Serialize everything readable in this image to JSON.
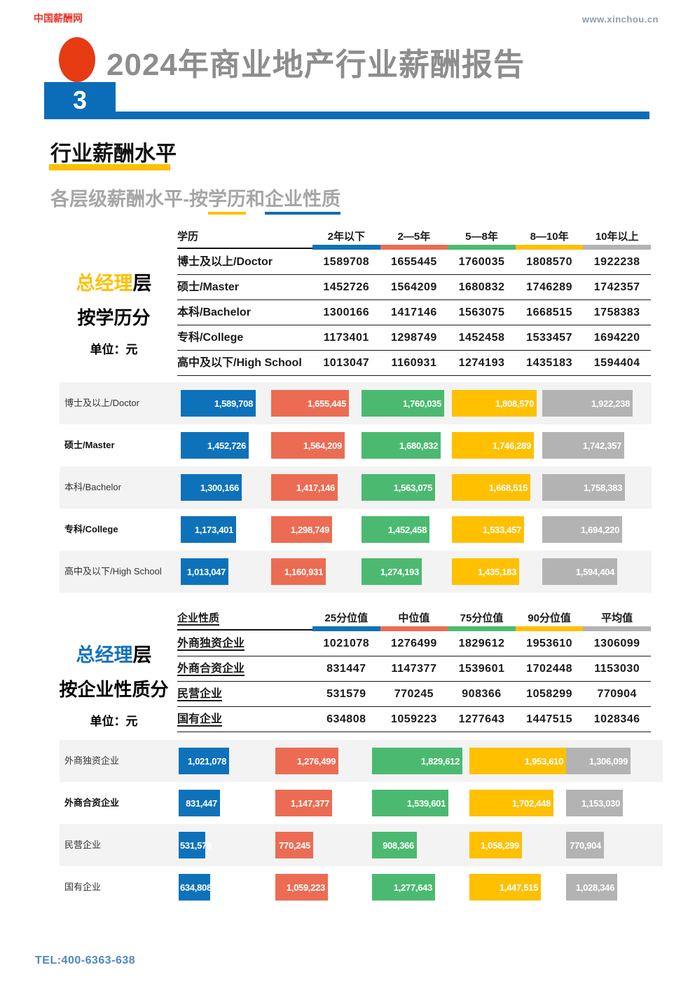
{
  "header": {
    "logo": "中国薪酬网",
    "url": "www.xinchou.cn",
    "page_number": "3",
    "title": "2024年商业地产行业薪酬报告"
  },
  "section": {
    "title": "行业薪酬水平",
    "subtitle_prefix": "各层级薪酬水平-按",
    "subtitle_edu": "学历",
    "subtitle_and": "和",
    "subtitle_ent": "企业性质"
  },
  "colors": {
    "accent_blue": "#0B6CB8",
    "accent_yellow": "#FFC000",
    "logo_red": "#E8372C",
    "circle_red": "#E63B12",
    "title_gray": "#8D8D8D",
    "subtitle_gray": "#A6A6A6",
    "stripe_gray": "#F3F3F3",
    "tel_blue": "#4E87C6",
    "bars": [
      "#0E72BA",
      "#EC6C53",
      "#4BBA70",
      "#FFC000",
      "#B3B3B3"
    ]
  },
  "chart_data": [
    {
      "type": "bar",
      "group_title": "总经理层 按学历分",
      "side": {
        "highlight": "总经理",
        "suffix": "层",
        "line2": "按学历分",
        "unit": "单位：元"
      },
      "table_label_header": "学历",
      "columns": [
        "2年以下",
        "2—5年",
        "5—8年",
        "8—10年",
        "10年以上"
      ],
      "categories": [
        "博士及以上/Doctor",
        "硕士/Master",
        "本科/Bachelor",
        "专科/College",
        "高中及以下/High School"
      ],
      "values": [
        [
          1589708,
          1655445,
          1760035,
          1808570,
          1922238
        ],
        [
          1452726,
          1564209,
          1680832,
          1746289,
          1742357
        ],
        [
          1300166,
          1417146,
          1563075,
          1668515,
          1758383
        ],
        [
          1173401,
          1298749,
          1452458,
          1533457,
          1694220
        ],
        [
          1013047,
          1160931,
          1274193,
          1435183,
          1594404
        ]
      ],
      "max": 1922238,
      "bold_rows": [
        1,
        3
      ],
      "label_underline": false,
      "header_underline": false
    },
    {
      "type": "bar",
      "group_title": "总经理层 按企业性质分",
      "side": {
        "highlight": "总经理",
        "suffix": "层",
        "line2": "按企业性质分",
        "unit": "单位：元"
      },
      "table_label_header": "企业性质",
      "columns": [
        "25分位值",
        "中位值",
        "75分位值",
        "90分位值",
        "平均值"
      ],
      "categories": [
        "外商独资企业",
        "外商合资企业",
        "民营企业",
        "国有企业"
      ],
      "values": [
        [
          1021078,
          1276499,
          1829612,
          1953610,
          1306099
        ],
        [
          831447,
          1147377,
          1539601,
          1702448,
          1153030
        ],
        [
          531579,
          770245,
          908366,
          1058299,
          770904
        ],
        [
          634808,
          1059223,
          1277643,
          1447515,
          1028346
        ]
      ],
      "max": 1953610,
      "bold_rows": [
        1
      ],
      "label_underline": true,
      "header_underline": true
    }
  ],
  "footer": {
    "tel": "TEL:400-6363-638"
  }
}
